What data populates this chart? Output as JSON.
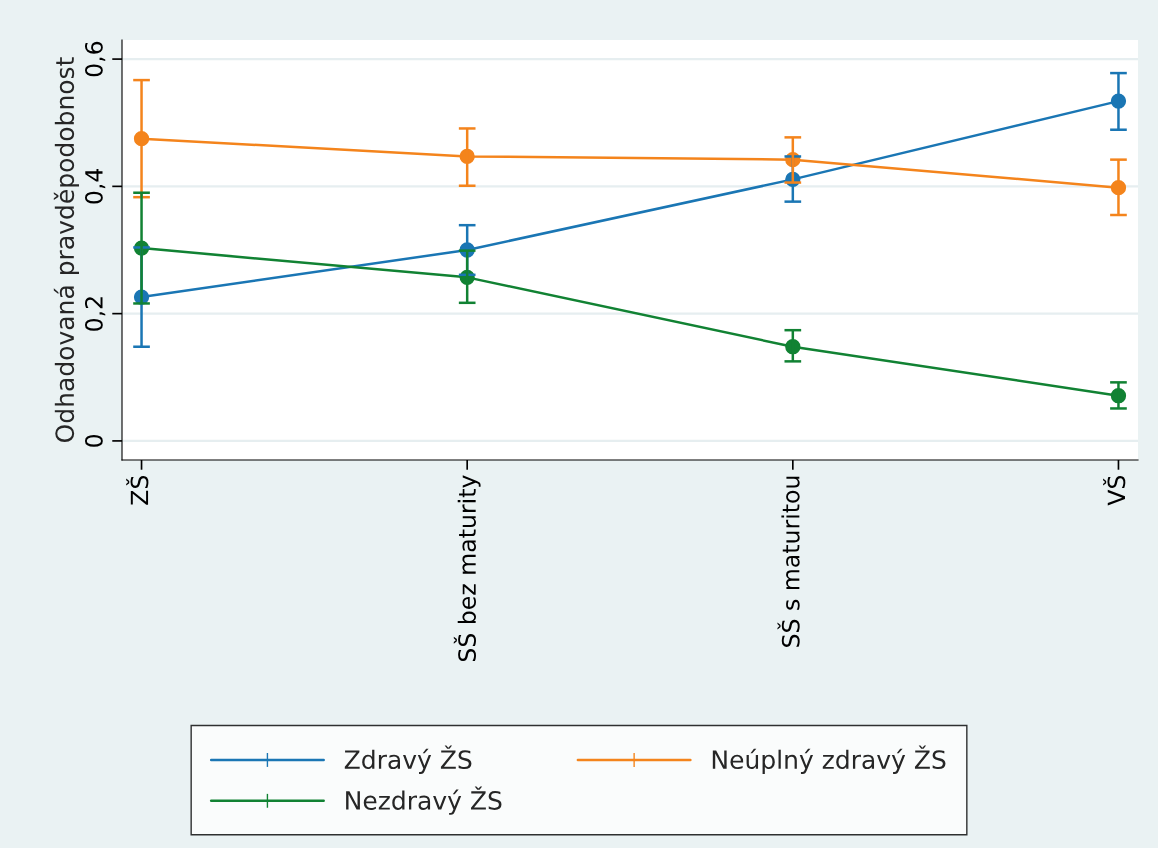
{
  "chart_data": {
    "type": "line",
    "ylabel": "Odhadovaná pravděpodobnost",
    "categories": [
      "ZŠ",
      "SŠ bez maturity",
      "SŠ s maturitou",
      "VŠ"
    ],
    "series": [
      {
        "name": "Zdravý ŽS",
        "color": "#1a76b4",
        "values": [
          0.226,
          0.3,
          0.411,
          0.534
        ],
        "errors": [
          [
            0.148,
            0.304
          ],
          [
            0.261,
            0.339
          ],
          [
            0.376,
            0.447
          ],
          [
            0.489,
            0.578
          ]
        ]
      },
      {
        "name": "Neúplný zdravý ŽS",
        "color": "#f4841c",
        "values": [
          0.475,
          0.447,
          0.442,
          0.398
        ],
        "errors": [
          [
            0.383,
            0.567
          ],
          [
            0.401,
            0.491
          ],
          [
            0.406,
            0.477
          ],
          [
            0.355,
            0.442
          ]
        ]
      },
      {
        "name": "Nezdravý ŽS",
        "color": "#118233",
        "values": [
          0.303,
          0.257,
          0.148,
          0.071
        ],
        "errors": [
          [
            0.216,
            0.39
          ],
          [
            0.217,
            0.299
          ],
          [
            0.125,
            0.174
          ],
          [
            0.051,
            0.092
          ]
        ]
      }
    ],
    "ylim": [
      -0.03,
      0.63
    ],
    "yticks": [
      0,
      {
        "value": 0.2,
        "label": "0,2"
      },
      {
        "value": 0.4,
        "label": "0,4"
      },
      {
        "value": 0.6,
        "label": "0,6"
      }
    ],
    "grid": "y",
    "legend": "bottom",
    "marker": "circle",
    "line_style": "solid"
  }
}
